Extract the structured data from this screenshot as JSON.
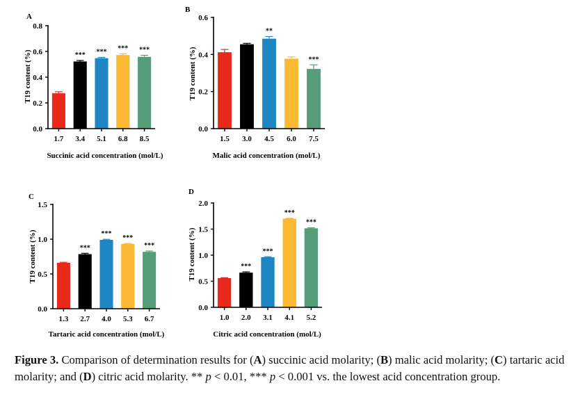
{
  "chart_data": [
    {
      "panel": "A",
      "type": "bar",
      "categories": [
        "1.7",
        "3.4",
        "5.1",
        "6.8",
        "8.5"
      ],
      "values": [
        0.275,
        0.522,
        0.548,
        0.572,
        0.558
      ],
      "errors": [
        0.012,
        0.008,
        0.006,
        0.01,
        0.012
      ],
      "significance": [
        "",
        "***",
        "***",
        "***",
        "***"
      ],
      "colors": [
        "#e8291c",
        "#000000",
        "#1e86c2",
        "#fbb832",
        "#579c79"
      ],
      "xlabel": "Succinic acid concentration (mol/L)",
      "ylabel": "T19 content (%)",
      "ylim": [
        0,
        0.8
      ],
      "yticks": [
        "0.0",
        "0.2",
        "0.4",
        "0.6",
        "0.8"
      ]
    },
    {
      "panel": "B",
      "type": "bar",
      "categories": [
        "1.5",
        "3.0",
        "4.5",
        "6.0",
        "7.5"
      ],
      "values": [
        0.412,
        0.455,
        0.485,
        0.377,
        0.322
      ],
      "errors": [
        0.015,
        0.005,
        0.012,
        0.01,
        0.022
      ],
      "significance": [
        "",
        "",
        "**",
        "",
        "***"
      ],
      "colors": [
        "#e8291c",
        "#000000",
        "#1e86c2",
        "#fbb832",
        "#579c79"
      ],
      "xlabel": "Malic acid concentration (mol/L)",
      "ylabel": "T19 content (%)",
      "ylim": [
        0,
        0.6
      ],
      "yticks": [
        "0.0",
        "0.2",
        "0.4",
        "0.6"
      ]
    },
    {
      "panel": "C",
      "type": "bar",
      "categories": [
        "1.3",
        "2.7",
        "4.0",
        "5.3",
        "6.7"
      ],
      "values": [
        0.66,
        0.785,
        0.99,
        0.932,
        0.818
      ],
      "errors": [
        0.008,
        0.012,
        0.008,
        0.006,
        0.012
      ],
      "significance": [
        "",
        "***",
        "***",
        "***",
        "***"
      ],
      "colors": [
        "#e8291c",
        "#000000",
        "#1e86c2",
        "#fbb832",
        "#579c79"
      ],
      "xlabel": "Tartaric acid concentration (mol/L)",
      "ylabel": "T19 content (%)",
      "ylim": [
        0,
        1.5
      ],
      "yticks": [
        "0.0",
        "0.5",
        "1.0",
        "1.5"
      ]
    },
    {
      "panel": "D",
      "type": "bar",
      "categories": [
        "1.0",
        "2.0",
        "3.1",
        "4.1",
        "5.2"
      ],
      "values": [
        0.56,
        0.665,
        0.96,
        1.7,
        1.515
      ],
      "errors": [
        0.008,
        0.015,
        0.01,
        0.008,
        0.01
      ],
      "significance": [
        "",
        "***",
        "***",
        "***",
        "***"
      ],
      "colors": [
        "#e8291c",
        "#000000",
        "#1e86c2",
        "#fbb832",
        "#579c79"
      ],
      "xlabel": "Citric acid concentration (mol/L)",
      "ylabel": "T19 content (%)",
      "ylim": [
        0,
        2.0
      ],
      "yticks": [
        "0.0",
        "0.5",
        "1.0",
        "1.5",
        "2.0"
      ]
    }
  ],
  "caption": {
    "figure_label": "Figure 3.",
    "t1": " Comparison of determination results for (",
    "a": "A",
    "t2": ") succinic acid molarity; (",
    "b": "B",
    "t3": ") malic acid molarity; (",
    "c": "C",
    "t4": ") tartaric acid molarity; and (",
    "d": "D",
    "t5": ") citric acid molarity. ** ",
    "p1": "p",
    "t6": " < 0.01, *** ",
    "p2": "p",
    "t7": " < 0.001 vs. the lowest acid concentration group."
  }
}
